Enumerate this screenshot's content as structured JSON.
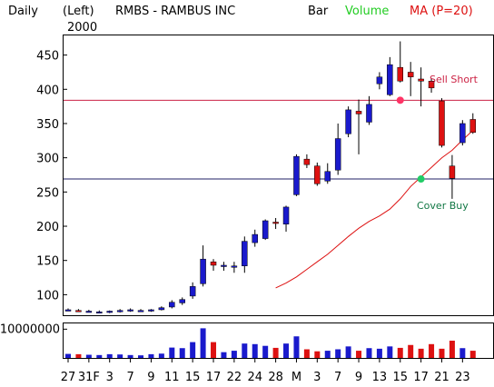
{
  "header": {
    "period": "Daily",
    "axis_side": "(Left)",
    "year": "2000",
    "symbol": "RMBS - RAMBUS INC",
    "chart_style": "Bar",
    "volume_label": "Volume",
    "ma_label": "MA (P=20)"
  },
  "colors": {
    "up": "#1a1acc",
    "down": "#dd1111",
    "ma": "#dd1111",
    "volume_label": "#22cc22",
    "resistance": "#cc2244",
    "support": "#222266",
    "sell_marker": "#ff3366",
    "buy_marker": "#22cc66",
    "annotation_sell": "#cc2244",
    "annotation_buy": "#117744"
  },
  "annotations": {
    "sell": {
      "text": "Sell Short",
      "price": 384,
      "index": 32
    },
    "buy": {
      "text": "Cover Buy",
      "price": 269,
      "index": 34
    }
  },
  "chart_data": {
    "type": "candlestick",
    "title": "RMBS - RAMBUS INC",
    "ylabel": "",
    "yticks": [
      100,
      150,
      200,
      250,
      300,
      350,
      400,
      450
    ],
    "ylim": [
      70,
      480
    ],
    "xlabels": [
      "27",
      "31F",
      "3",
      "7",
      "9",
      "11",
      "15",
      "17",
      "22",
      "24",
      "28",
      "M",
      "3",
      "7",
      "9",
      "13",
      "15",
      "17",
      "21",
      "23"
    ],
    "grid": false,
    "series": [
      {
        "name": "Price",
        "ohlc": [
          [
            78,
            80,
            76,
            78
          ],
          [
            77,
            79,
            75,
            76
          ],
          [
            76,
            78,
            74,
            76
          ],
          [
            75,
            77,
            73,
            75
          ],
          [
            75,
            77,
            73,
            76
          ],
          [
            76,
            79,
            74,
            77
          ],
          [
            77,
            80,
            75,
            78
          ],
          [
            77,
            79,
            76,
            77
          ],
          [
            77,
            79,
            75,
            78
          ],
          [
            78,
            83,
            77,
            81
          ],
          [
            82,
            92,
            80,
            89
          ],
          [
            88,
            96,
            85,
            93
          ],
          [
            98,
            118,
            94,
            112
          ],
          [
            116,
            172,
            112,
            152
          ],
          [
            148,
            152,
            135,
            143
          ],
          [
            142,
            148,
            135,
            143
          ],
          [
            140,
            148,
            132,
            142
          ],
          [
            142,
            185,
            132,
            178
          ],
          [
            176,
            195,
            170,
            188
          ],
          [
            182,
            210,
            180,
            208
          ],
          [
            206,
            212,
            196,
            205
          ],
          [
            203,
            230,
            192,
            228
          ],
          [
            246,
            305,
            244,
            302
          ],
          [
            298,
            305,
            285,
            290
          ],
          [
            288,
            293,
            259,
            262
          ],
          [
            266,
            292,
            262,
            280
          ],
          [
            282,
            350,
            275,
            328
          ],
          [
            335,
            375,
            330,
            370
          ],
          [
            368,
            385,
            305,
            364
          ],
          [
            352,
            390,
            348,
            378
          ],
          [
            408,
            425,
            400,
            418
          ],
          [
            392,
            447,
            390,
            436
          ],
          [
            432,
            470,
            410,
            412
          ],
          [
            425,
            440,
            390,
            418
          ],
          [
            415,
            432,
            375,
            412
          ],
          [
            412,
            416,
            395,
            402
          ],
          [
            383,
            387,
            315,
            318
          ],
          [
            288,
            304,
            240,
            270
          ],
          [
            322,
            355,
            318,
            350
          ],
          [
            356,
            365,
            335,
            337
          ]
        ]
      },
      {
        "name": "MA (P=20)",
        "values": [
          null,
          null,
          null,
          null,
          null,
          null,
          null,
          null,
          null,
          null,
          null,
          null,
          null,
          null,
          null,
          null,
          null,
          null,
          null,
          null,
          110,
          117,
          126,
          137,
          148,
          159,
          172,
          185,
          197,
          207,
          215,
          225,
          240,
          258,
          272,
          286,
          300,
          311,
          326,
          340
        ]
      },
      {
        "name": "Volume",
        "values": [
          1400000,
          1300000,
          1100000,
          1000000,
          1300000,
          1200000,
          1000000,
          900000,
          1300000,
          1500000,
          3600000,
          3400000,
          5500000,
          10300000,
          5500000,
          2000000,
          2500000,
          5000000,
          4800000,
          4200000,
          3500000,
          5000000,
          7500000,
          3000000,
          2300000,
          2500000,
          3000000,
          4000000,
          2500000,
          3400000,
          3200000,
          4000000,
          3500000,
          4500000,
          3200000,
          4800000,
          3200000,
          6000000,
          3400000,
          2500000
        ]
      }
    ],
    "levels": [
      {
        "name": "Sell Short",
        "value": 384
      },
      {
        "name": "Cover Buy",
        "value": 269
      }
    ],
    "volume_ytick": "10000000",
    "volume_ymax": 12000000
  }
}
